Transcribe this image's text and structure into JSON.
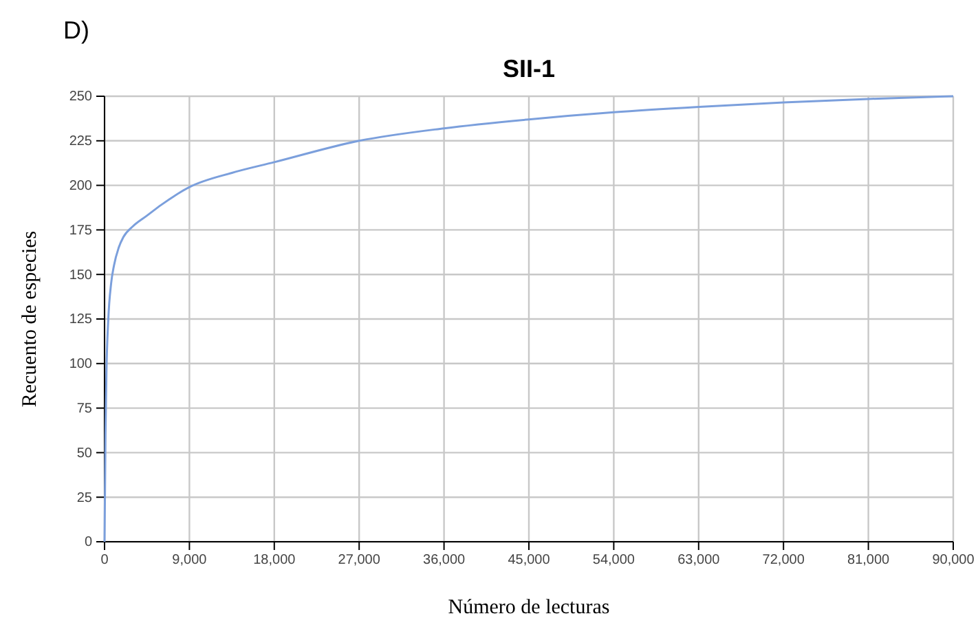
{
  "chart_data": {
    "type": "line",
    "title": "SII-1",
    "xlabel": "Número de lecturas",
    "ylabel": "Recuento de especies",
    "annotations": [
      "D)"
    ],
    "x": [
      0,
      100,
      200,
      400,
      700,
      1000,
      1500,
      2000,
      3000,
      4500,
      6000,
      9000,
      13500,
      18000,
      27000,
      36000,
      45000,
      54000,
      63000,
      72000,
      81000,
      90000
    ],
    "series": [
      {
        "color": "#7b9fdc",
        "values": [
          0,
          60,
          95,
          125,
          145,
          155,
          165,
          171,
          177,
          183,
          189,
          199,
          207,
          213,
          225,
          232,
          237,
          241,
          244,
          246.5,
          248.5,
          250
        ]
      }
    ],
    "xlim": [
      0,
      90000
    ],
    "ylim": [
      0,
      250
    ],
    "xticks": [
      0,
      {
        "value": 9000,
        "label": "9,000"
      },
      {
        "value": 18000,
        "label": "18,000"
      },
      {
        "value": 27000,
        "label": "27,000"
      },
      {
        "value": 36000,
        "label": "36,000"
      },
      {
        "value": 45000,
        "label": "45,000"
      },
      {
        "value": 54000,
        "label": "54,000"
      },
      {
        "value": 63000,
        "label": "63,000"
      },
      {
        "value": 72000,
        "label": "72,000"
      },
      {
        "value": 81000,
        "label": "81,000"
      },
      {
        "value": 90000,
        "label": "90,000"
      }
    ],
    "yticks": [
      0,
      25,
      50,
      75,
      100,
      125,
      150,
      175,
      200,
      225,
      250
    ],
    "grid": true,
    "marker": "none",
    "line_style": "solid"
  }
}
